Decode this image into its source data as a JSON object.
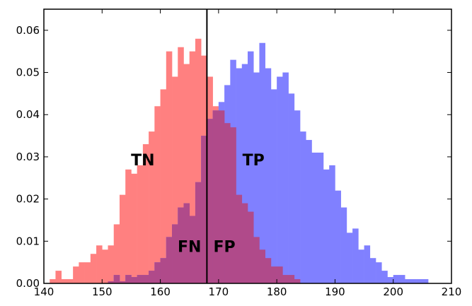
{
  "chart_data": {
    "type": "bar",
    "title": "",
    "xlabel": "",
    "ylabel": "",
    "xlim": [
      140,
      210
    ],
    "ylim": [
      0,
      0.065
    ],
    "grid": false,
    "bin_width": 1,
    "colors": {
      "negative": "#ff8080",
      "positive": "#8080ff",
      "overlap": "#b04a8a",
      "threshold_line": "#000000"
    },
    "xticks": [
      "140",
      "150",
      "160",
      "170",
      "180",
      "190",
      "200",
      "210"
    ],
    "yticks": [
      "0.00",
      "0.01",
      "0.02",
      "0.03",
      "0.04",
      "0.05",
      "0.06"
    ],
    "threshold": 168,
    "series": [
      {
        "bin_start": 141,
        "values": [
          0.001,
          0.003,
          0.001,
          0.001,
          0.004,
          0.005,
          0.005,
          0.007,
          0.009,
          0.008,
          0.009,
          0.014,
          0.021,
          0.027,
          0.026,
          0.028,
          0.033,
          0.036,
          0.042,
          0.046,
          0.055,
          0.049,
          0.056,
          0.052,
          0.055,
          0.058,
          0.054,
          0.049,
          0.042,
          0.041,
          0.038,
          0.037,
          0.021,
          0.019,
          0.017,
          0.011,
          0.008,
          0.006,
          0.004,
          0.004,
          0.002,
          0.002,
          0.001
        ]
      },
      {
        "bin_start": 151,
        "values": [
          0.0005,
          0.002,
          0.0005,
          0.002,
          0.0015,
          0.002,
          0.002,
          0.003,
          0.005,
          0.006,
          0.011,
          0.014,
          0.018,
          0.019,
          0.016,
          0.024,
          0.035,
          0.039,
          0.041,
          0.043,
          0.047,
          0.053,
          0.051,
          0.052,
          0.055,
          0.05,
          0.057,
          0.051,
          0.046,
          0.049,
          0.05,
          0.045,
          0.041,
          0.036,
          0.034,
          0.031,
          0.031,
          0.027,
          0.028,
          0.022,
          0.018,
          0.012,
          0.013,
          0.008,
          0.009,
          0.006,
          0.005,
          0.003,
          0.0015,
          0.002,
          0.002,
          0.001,
          0.001,
          0.001,
          0.001
        ]
      }
    ],
    "annotations": [
      {
        "text": "TN",
        "x": 157,
        "y": 0.029
      },
      {
        "text": "TP",
        "x": 176,
        "y": 0.029
      },
      {
        "text": "FN",
        "x": 165,
        "y": 0.0085
      },
      {
        "text": "FP",
        "x": 171,
        "y": 0.0085
      }
    ]
  }
}
